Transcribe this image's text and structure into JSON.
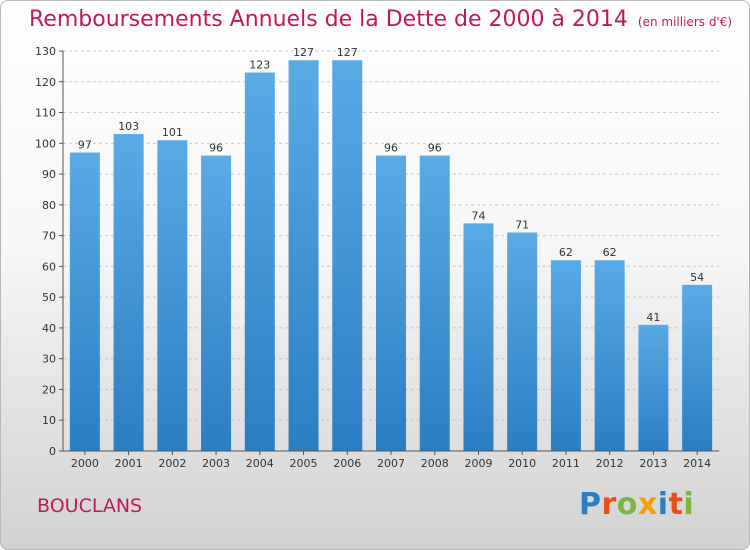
{
  "chart_data": {
    "type": "bar",
    "title": "Remboursements Annuels de la Dette de 2000 à 2014",
    "unit_note": "(en milliers d'€)",
    "categories": [
      "2000",
      "2001",
      "2002",
      "2003",
      "2004",
      "2005",
      "2006",
      "2007",
      "2008",
      "2009",
      "2010",
      "2011",
      "2012",
      "2013",
      "2014"
    ],
    "values": [
      97,
      103,
      101,
      96,
      123,
      127,
      127,
      96,
      96,
      74,
      71,
      62,
      62,
      41,
      54
    ],
    "ylim": [
      0,
      130
    ],
    "yticks": [
      0,
      10,
      20,
      30,
      40,
      50,
      60,
      70,
      80,
      90,
      100,
      110,
      120,
      130
    ],
    "grid": true,
    "bar_color_top": "#5aaae6",
    "bar_color_bottom": "#2a7ec2"
  },
  "footer": {
    "commune": "BOUCLANS",
    "logo_letters": [
      {
        "ch": "P",
        "color": "#2a7ec2"
      },
      {
        "ch": "r",
        "color": "#e94e1b"
      },
      {
        "ch": "o",
        "color": "#7cb342"
      },
      {
        "ch": "x",
        "color": "#f4a000"
      },
      {
        "ch": "i",
        "color": "#2a7ec2"
      },
      {
        "ch": "t",
        "color": "#e94e1b"
      },
      {
        "ch": "i",
        "color": "#7cb342"
      }
    ]
  },
  "colors": {
    "title": "#c2185b",
    "grid": "#c8c8c8",
    "axis": "#555555"
  }
}
